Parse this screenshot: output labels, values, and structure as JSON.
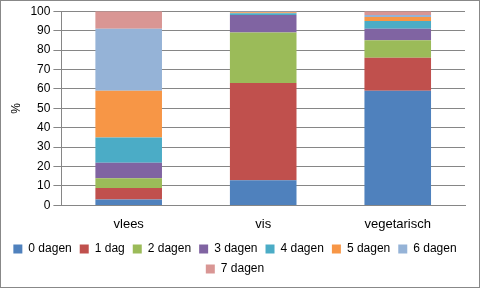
{
  "chart_data": {
    "type": "bar",
    "stacked": true,
    "grid": true,
    "legend": "bottom",
    "y_label": "%",
    "categories": [
      "vlees",
      "vis",
      "vegetarisch"
    ],
    "ylim": [
      0,
      100
    ],
    "yticks": [
      0,
      10,
      20,
      30,
      40,
      50,
      60,
      70,
      80,
      90,
      100
    ],
    "series": [
      {
        "name": "0 dagen",
        "color": "#4F81BD",
        "values": [
          3,
          13,
          59
        ]
      },
      {
        "name": "1 dag",
        "color": "#C0504D",
        "values": [
          6,
          50,
          17
        ]
      },
      {
        "name": "2 dagen",
        "color": "#9BBB59",
        "values": [
          5,
          26,
          9
        ]
      },
      {
        "name": "3 dagen",
        "color": "#8064A2",
        "values": [
          8,
          9,
          6
        ]
      },
      {
        "name": "4 dagen",
        "color": "#4BACC6",
        "values": [
          13,
          1,
          4
        ]
      },
      {
        "name": "5 dagen",
        "color": "#F79646",
        "values": [
          24,
          0.5,
          2
        ]
      },
      {
        "name": "6 dagen",
        "color": "#95B3D7",
        "values": [
          32,
          0.3,
          1
        ]
      },
      {
        "name": "7 dagen",
        "color": "#D99694",
        "values": [
          9,
          0.2,
          2
        ]
      }
    ]
  }
}
